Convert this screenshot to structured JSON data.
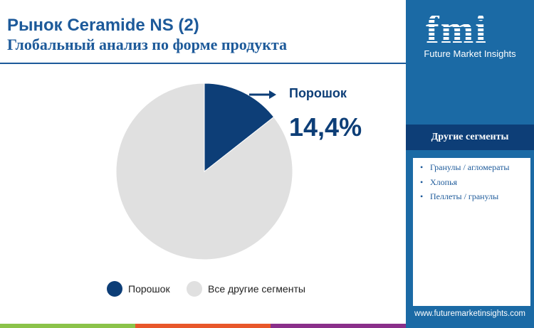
{
  "title": {
    "prefix": "Рынок ",
    "brand": "Ceramide NS (2)",
    "subtitle": "Глобальный анализ по форме продукта"
  },
  "logo": {
    "text": "fmi",
    "name": "Future Market Insights",
    "url": "www.futuremarketinsights.com"
  },
  "other_segments": {
    "heading": "Другие сегменты",
    "items": [
      "Гранулы / агломераты",
      "Хлопья",
      "Пеллеты / гранулы"
    ]
  },
  "colors": {
    "primary": "#0d3e77",
    "other": "#e0e0e0",
    "panel": "#1b6aa5"
  },
  "chart_data": {
    "type": "pie",
    "slices": [
      {
        "label": "Порошок",
        "value": 14.4,
        "color": "#0d3e77"
      },
      {
        "label": "Все другие сегменты",
        "value": 85.6,
        "color": "#e0e0e0"
      }
    ],
    "highlight": {
      "label": "Порошок",
      "value_text": "14,4%"
    },
    "legend": [
      "Порошок",
      "Все другие сегменты"
    ],
    "legend_position": "bottom"
  }
}
